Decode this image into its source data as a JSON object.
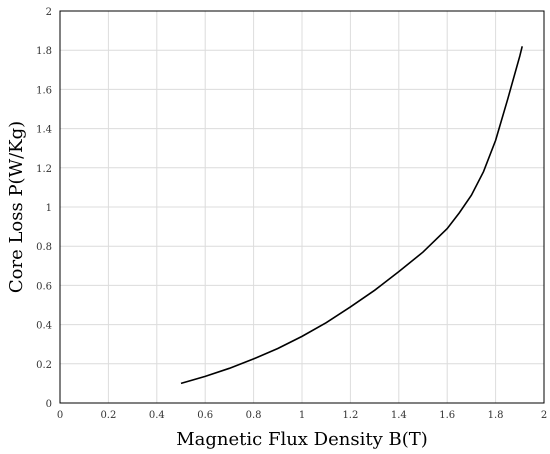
{
  "chart_data": {
    "type": "line",
    "title": "",
    "xlabel": "Magnetic Flux Density B(T)",
    "ylabel": "Core Loss P(W/Kg)",
    "xlim": [
      0,
      2
    ],
    "ylim": [
      0,
      2
    ],
    "x_ticks": [
      "0",
      "0.2",
      "0.4",
      "0.6",
      "0.8",
      "1",
      "1.2",
      "1.4",
      "1.6",
      "1.8",
      "2"
    ],
    "y_ticks": [
      "0",
      "0.2",
      "0.4",
      "0.6",
      "0.8",
      "1",
      "1.2",
      "1.4",
      "1.6",
      "1.8",
      "2"
    ],
    "grid": true,
    "line_color": "#000000",
    "grid_color": "#dcdcdc",
    "series": [
      {
        "x": [
          0.5,
          0.6,
          0.7,
          0.8,
          0.9,
          1.0,
          1.1,
          1.2,
          1.3,
          1.4,
          1.5,
          1.6,
          1.65,
          1.7,
          1.75,
          1.8,
          1.85,
          1.9,
          1.91
        ],
        "y": [
          0.1,
          0.136,
          0.177,
          0.225,
          0.278,
          0.34,
          0.41,
          0.49,
          0.575,
          0.67,
          0.77,
          0.89,
          0.97,
          1.06,
          1.18,
          1.34,
          1.55,
          1.77,
          1.82
        ]
      }
    ]
  }
}
